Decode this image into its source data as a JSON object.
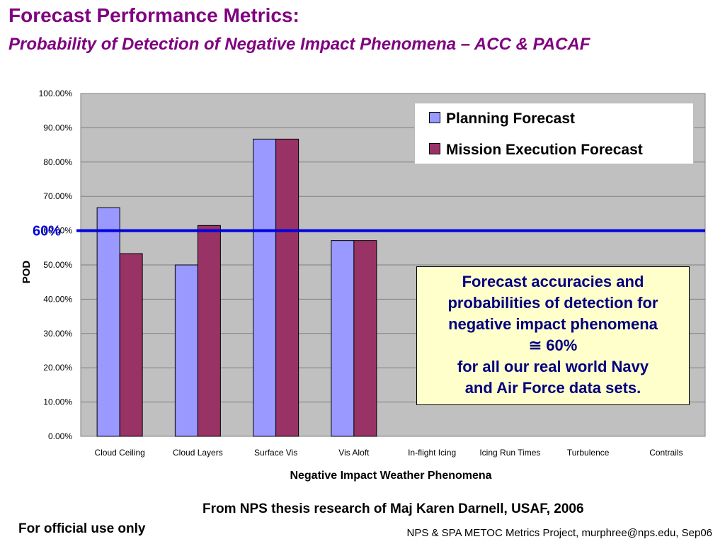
{
  "slide": {
    "title": "Forecast Performance Metrics:",
    "subtitle": "Probability of Detection of Negative Impact Phenomena – ACC & PACAF",
    "annotation": "Forecast accuracies and\nprobabilities of detection for\nnegative impact phenomena\n≅ 60%\nfor all our real world Navy\nand Air Force data sets.",
    "source_note": "From NPS thesis research of Maj Karen Darnell, USAF, 2006",
    "official_use": "For official use only",
    "footer": "NPS & SPA METOC Metrics Project, murphree@nps.edu, Sep06"
  },
  "colors": {
    "title": "#800080",
    "plot_bg": "#c0c0c0",
    "planning": "#9999ff",
    "mission": "#993366",
    "reference_line": "#0000dd",
    "annotation_bg": "#ffffcc",
    "annotation_text": "#000080"
  },
  "chart_data": {
    "type": "bar",
    "title": "",
    "xlabel": "Negative Impact Weather Phenomena",
    "ylabel": "POD",
    "ylim": [
      0,
      100
    ],
    "yticks": [
      "0.00%",
      "10.00%",
      "20.00%",
      "30.00%",
      "40.00%",
      "50.00%",
      "60.00%",
      "70.00%",
      "80.00%",
      "90.00%",
      "100.00%"
    ],
    "categories": [
      "Cloud Ceiling",
      "Cloud Layers",
      "Surface Vis",
      "Vis Aloft",
      "In-flight Icing",
      "Icing Run Times",
      "Turbulence",
      "Contrails"
    ],
    "series": [
      {
        "name": "Planning Forecast",
        "values": [
          66.7,
          50.0,
          86.7,
          57.1,
          null,
          null,
          null,
          null
        ]
      },
      {
        "name": "Mission Execution Forecast",
        "values": [
          53.3,
          61.5,
          86.7,
          57.1,
          null,
          null,
          null,
          null
        ]
      }
    ],
    "reference_line": {
      "value": 60,
      "label": "60%"
    },
    "grid": true,
    "legend_position": "top-right"
  }
}
